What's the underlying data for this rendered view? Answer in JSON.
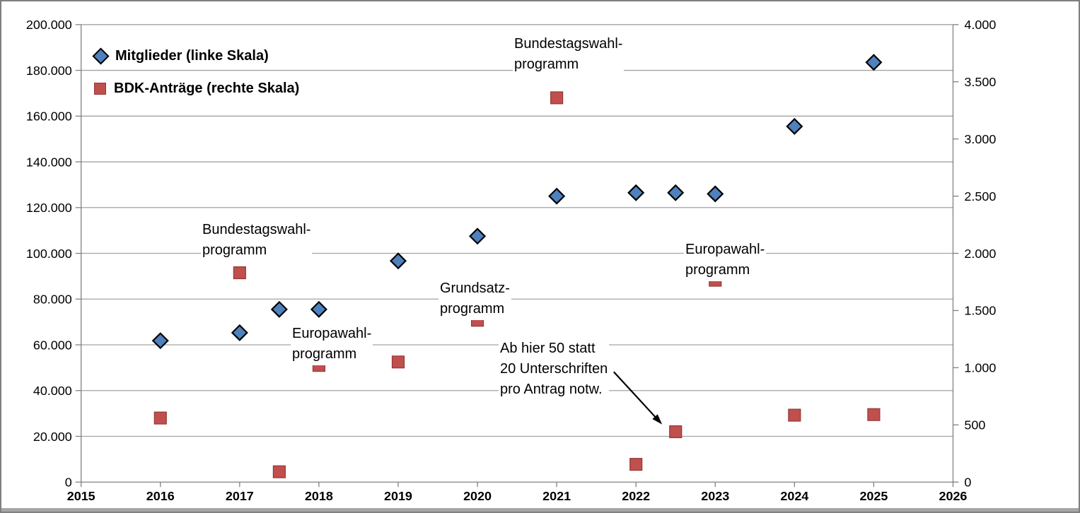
{
  "chart_data": {
    "type": "scatter",
    "title": "",
    "grid": true,
    "legend_position": "inside-top-left",
    "x_axis": {
      "min": 2015,
      "max": 2026,
      "tick_labels": [
        "2015",
        "2016",
        "2017",
        "2018",
        "2019",
        "2020",
        "2021",
        "2022",
        "2023",
        "2024",
        "2025",
        "2026"
      ]
    },
    "y_axis_left": {
      "min": 0,
      "max": 200000,
      "tick_labels_top_to_bottom": [
        "200.000",
        "180.000",
        "160.000",
        "140.000",
        "120.000",
        "100.000",
        "80.000",
        "60.000",
        "40.000",
        "20.000",
        "0"
      ]
    },
    "y_axis_right": {
      "min": 0,
      "max": 4000,
      "tick_labels_top_to_bottom": [
        "4.000",
        "3.500",
        "3.000",
        "2.500",
        "2.000",
        "1.500",
        "1.000",
        "500",
        "0"
      ]
    },
    "series": [
      {
        "name": "Mitglieder",
        "legend_label": "Mitglieder (linke Skala)",
        "axis": "left",
        "marker": "diamond",
        "color": "#4F81BD",
        "border_color": "#000000",
        "x": [
          2016,
          2017,
          2017.5,
          2018,
          2019,
          2020,
          2021,
          2022,
          2022.5,
          2023,
          2024,
          2025
        ],
        "values": [
          61800,
          65300,
          75500,
          75500,
          96700,
          107500,
          125000,
          126500,
          126500,
          126000,
          155500,
          183500
        ]
      },
      {
        "name": "BDK-Anträge",
        "legend_label": "BDK-Anträge (rechte Skala)",
        "axis": "right",
        "marker": "square",
        "color": "#C0504D",
        "border_color": "#953735",
        "x": [
          2016,
          2017,
          2017.5,
          2018,
          2019,
          2020,
          2021,
          2022,
          2022.5,
          2023,
          2024,
          2025
        ],
        "values": [
          560,
          1830,
          90,
          1020,
          1050,
          1415,
          3360,
          155,
          440,
          1765,
          585,
          590
        ]
      }
    ],
    "annotations": [
      {
        "id": "bundestagswahl-2017",
        "lines": [
          "Bundestagswahl-",
          "programm"
        ],
        "x": 2016.5,
        "y_left": 115500
      },
      {
        "id": "europawahl-2018",
        "lines": [
          "Europawahl-",
          "programm"
        ],
        "x": 2017.63,
        "y_left": 70300
      },
      {
        "id": "grundsatz-2020",
        "lines": [
          "Grundsatz-",
          "programm"
        ],
        "x": 2019.49,
        "y_left": 90000
      },
      {
        "id": "bundestagswahl-2021",
        "lines": [
          "Bundestagswahl-",
          "programm"
        ],
        "x": 2020.43,
        "y_left": 196300
      },
      {
        "id": "europawahl-2023",
        "lines": [
          "Europawahl-",
          "programm"
        ],
        "x": 2022.58,
        "y_left": 106900
      },
      {
        "id": "unterschriften-regel",
        "lines": [
          "Ab hier 50 statt",
          "20 Unterschriften",
          "pro Antrag notw."
        ],
        "x": 2020.25,
        "y_left": 63900,
        "arrow": {
          "from_x": 2021.72,
          "from_y_left": 48200,
          "to_x": 2022.33,
          "to_y_left": 25200
        }
      }
    ],
    "colors": {
      "accent_blue": "#4F81BD",
      "accent_red": "#C0504D",
      "gridline": "#A3A3A3",
      "axis": "#808080",
      "text": "#000000",
      "frame_border": "#7F7F7F",
      "frame_bottom_bar": "#A6A6A6"
    }
  }
}
